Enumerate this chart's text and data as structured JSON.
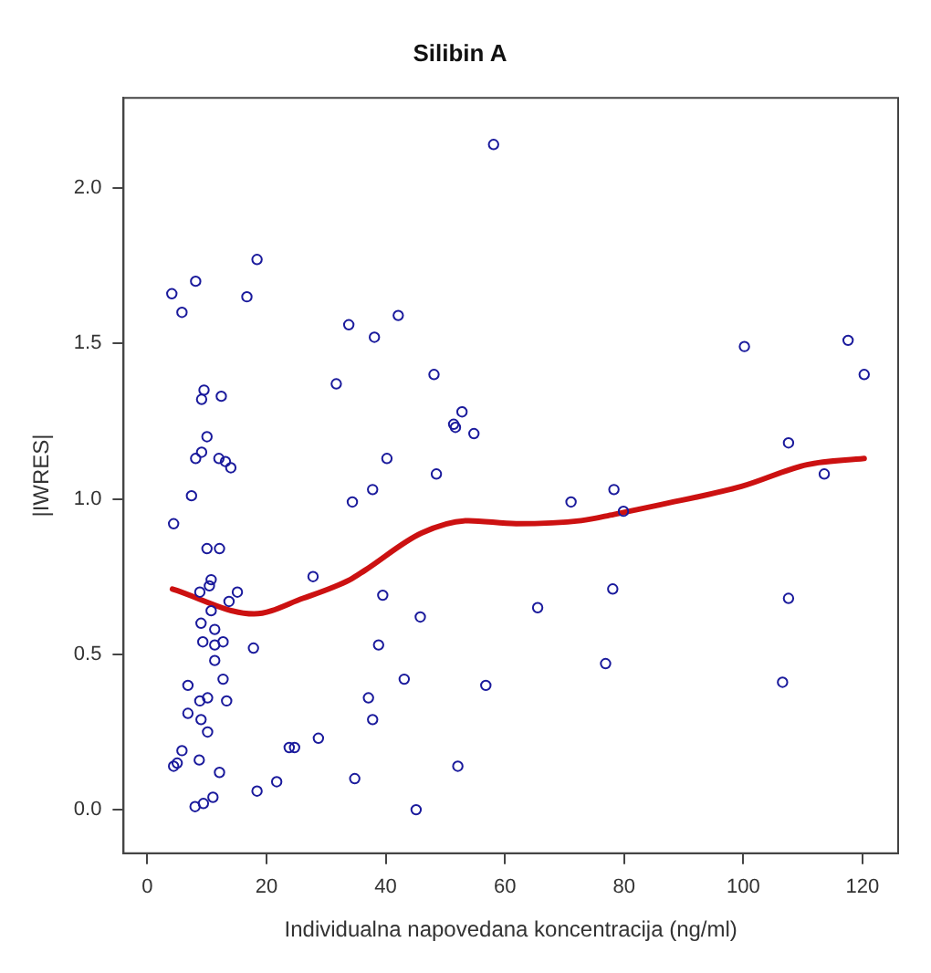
{
  "chart_data": {
    "type": "scatter",
    "title": "Silibin A",
    "xlabel": "Individualna napovedana koncentracija (ng/ml)",
    "ylabel": "|IWRES|",
    "xlim": [
      -4,
      126
    ],
    "xticks": [
      0,
      20,
      40,
      60,
      80,
      100,
      120
    ],
    "ylim": [
      -0.14,
      2.29
    ],
    "yticks": [
      {
        "value": 0,
        "label": "0.0"
      },
      0.5,
      {
        "value": 1,
        "label": "1.0"
      },
      1.5,
      {
        "value": 2,
        "label": "2.0"
      }
    ],
    "marker": "circle",
    "series": [
      {
        "type": "scatter",
        "color": "#1a1a9c",
        "x": [
          18.4,
          8.1,
          4.1,
          5.8,
          16.7,
          33.8,
          9.5,
          9.1,
          12.4,
          31.7,
          10.0,
          9.1,
          8.1,
          12.0,
          13.1,
          14.0,
          7.4,
          34.4,
          4.4,
          10.0,
          12.1,
          27.8,
          10.7,
          10.4,
          8.8,
          15.1,
          13.7,
          10.7,
          9.0,
          11.3,
          9.3,
          11.3,
          12.7,
          17.8,
          11.3,
          12.7,
          6.8,
          8.8,
          10.1,
          13.3,
          6.8,
          9.0,
          10.1,
          23.8,
          24.7,
          28.7,
          5.8,
          5.0,
          4.4,
          8.7,
          12.1,
          8.0,
          9.4,
          11.0,
          18.4,
          21.7,
          34.8,
          37.1,
          58.1,
          42.1,
          38.1,
          48.1,
          52.8,
          51.4,
          51.7,
          54.8,
          40.2,
          48.5,
          37.8,
          71.1,
          78.3,
          39.5,
          45.8,
          65.5,
          78.1,
          38.8,
          43.1,
          56.8,
          76.9,
          37.8,
          52.1,
          45.1,
          100.2,
          117.6,
          120.3,
          107.6,
          79.9,
          113.6,
          107.6,
          106.6
        ],
        "values": [
          1.77,
          1.7,
          1.66,
          1.6,
          1.65,
          1.56,
          1.35,
          1.32,
          1.33,
          1.37,
          1.2,
          1.15,
          1.13,
          1.13,
          1.12,
          1.1,
          1.01,
          0.99,
          0.92,
          0.84,
          0.84,
          0.75,
          0.74,
          0.72,
          0.7,
          0.7,
          0.67,
          0.64,
          0.6,
          0.58,
          0.54,
          0.53,
          0.54,
          0.52,
          0.48,
          0.42,
          0.4,
          0.35,
          0.36,
          0.35,
          0.31,
          0.29,
          0.25,
          0.2,
          0.2,
          0.23,
          0.19,
          0.15,
          0.14,
          0.16,
          0.12,
          0.01,
          0.02,
          0.04,
          0.06,
          0.09,
          0.1,
          0.36,
          2.14,
          1.59,
          1.52,
          1.4,
          1.28,
          1.24,
          1.23,
          1.21,
          1.13,
          1.08,
          1.03,
          0.99,
          1.03,
          0.69,
          0.62,
          0.65,
          0.71,
          0.53,
          0.42,
          0.4,
          0.47,
          0.29,
          0.14,
          0.0,
          1.49,
          1.51,
          1.4,
          1.18,
          0.96,
          1.08,
          0.68,
          0.41
        ]
      },
      {
        "type": "line",
        "marker": "none",
        "color": "#cc1111",
        "x": [
          4.2,
          17.9,
          26.1,
          34.0,
          36.5,
          46.0,
          53.9,
          61.9,
          72.8,
          78.3,
          85.8,
          99.7,
          110.7,
          120.3
        ],
        "values": [
          0.71,
          0.63,
          0.68,
          0.74,
          0.77,
          0.89,
          0.93,
          0.92,
          0.93,
          0.95,
          0.98,
          1.04,
          1.11,
          1.13
        ]
      }
    ]
  }
}
